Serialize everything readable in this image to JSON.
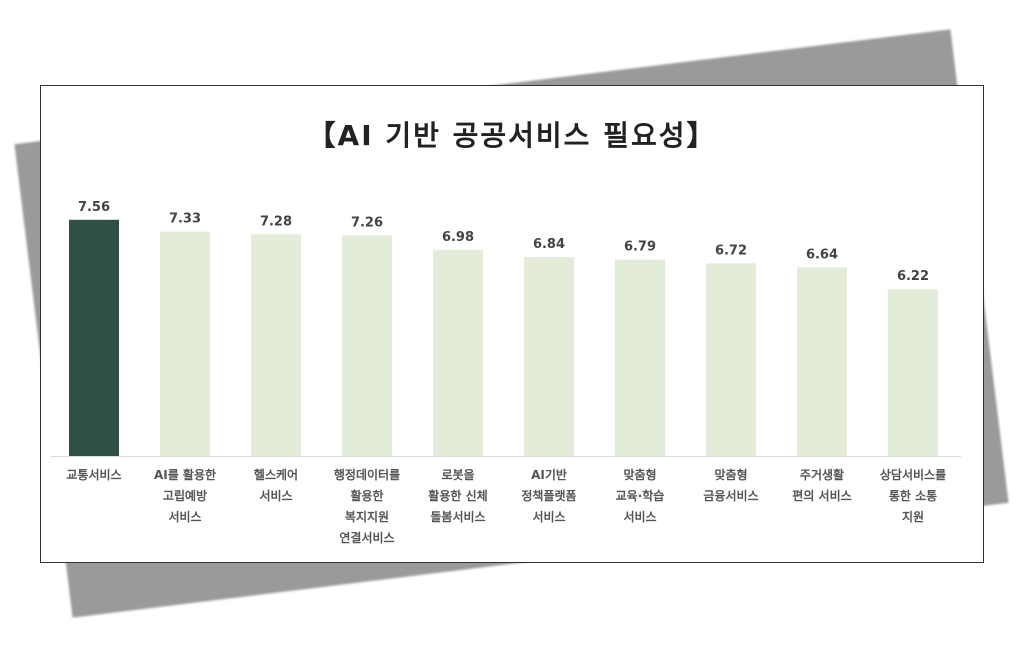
{
  "chart_data": {
    "type": "bar",
    "title": "【AI 기반 공공서비스 필요성】",
    "categories": [
      [
        "교통서비스"
      ],
      [
        "AI를 활용한",
        "고립예방",
        "서비스"
      ],
      [
        "헬스케어",
        "서비스"
      ],
      [
        "행정데이터를",
        "활용한",
        "복지지원",
        "연결서비스"
      ],
      [
        "로봇을",
        "활용한 신체",
        "돌봄서비스"
      ],
      [
        "AI기반",
        "정책플랫폼",
        "서비스"
      ],
      [
        "맞춤형",
        "교육·학습",
        "서비스"
      ],
      [
        "맞춤형",
        "금융서비스"
      ],
      [
        "주거생활",
        "편의 서비스"
      ],
      [
        "상담서비스를",
        "통한 소통",
        "지원"
      ]
    ],
    "values": [
      7.56,
      7.33,
      7.28,
      7.26,
      6.98,
      6.84,
      6.79,
      6.72,
      6.64,
      6.22
    ],
    "ylim": [
      3,
      8
    ],
    "grid": false,
    "colors": {
      "highlight": "#2f4f47",
      "default": "#e2ecd8"
    }
  }
}
